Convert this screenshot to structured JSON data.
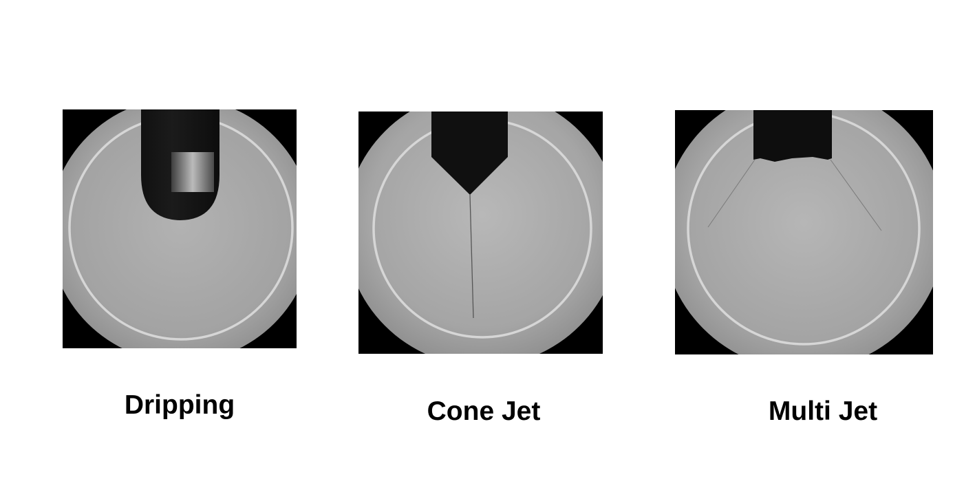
{
  "panels": [
    {
      "id": "dripping",
      "label": "Dripping"
    },
    {
      "id": "cone-jet",
      "label": "Cone Jet"
    },
    {
      "id": "multi-jet",
      "label": "Multi Jet"
    }
  ]
}
